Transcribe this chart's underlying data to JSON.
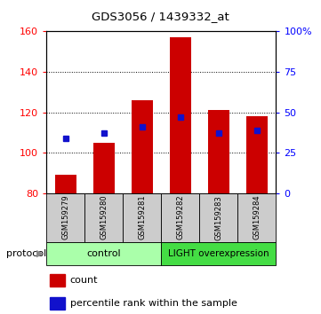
{
  "title": "GDS3056 / 1439332_at",
  "samples": [
    "GSM159279",
    "GSM159280",
    "GSM159281",
    "GSM159282",
    "GSM159283",
    "GSM159284"
  ],
  "counts": [
    89,
    105,
    126,
    157,
    121,
    118
  ],
  "percentile_ranks_pct": [
    34,
    37,
    41,
    47,
    37,
    39
  ],
  "ymin": 80,
  "ymax": 160,
  "y2min": 0,
  "y2max": 100,
  "yticks": [
    80,
    100,
    120,
    140,
    160
  ],
  "y2ticks": [
    0,
    25,
    50,
    75,
    100
  ],
  "y2ticklabels": [
    "0",
    "25",
    "50",
    "75",
    "100%"
  ],
  "bar_color": "#cc0000",
  "dot_color": "#1111cc",
  "bar_width": 0.55,
  "control_color": "#aaffaa",
  "light_color": "#44dd44",
  "protocol_label": "protocol",
  "legend_count_label": "count",
  "legend_pct_label": "percentile rank within the sample",
  "bg_color": "#ffffff",
  "grid_color": "#000000"
}
